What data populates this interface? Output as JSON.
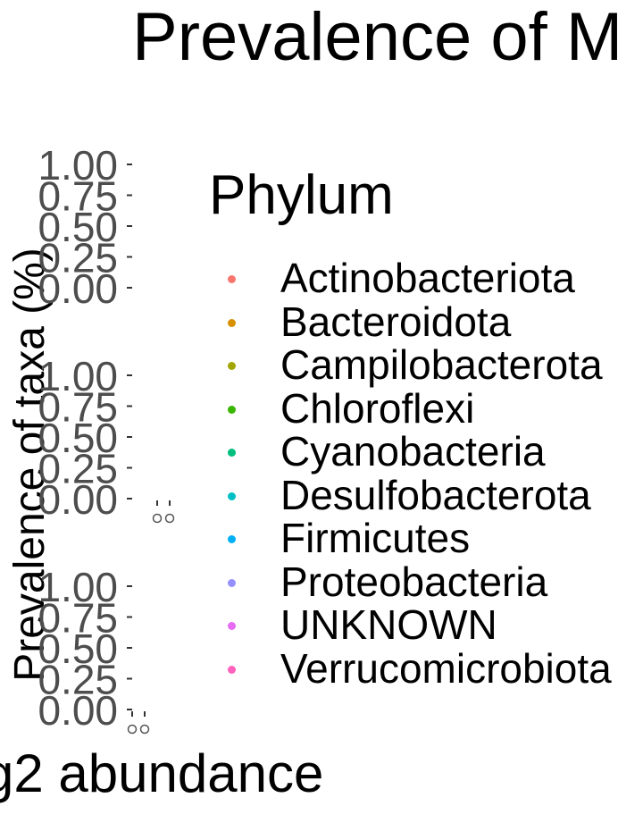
{
  "chart_data": {
    "type": "scatter",
    "title": "Prevalence of M",
    "ylabel": "Prevalence of taxa (%)",
    "xlabel": "g2 abundance",
    "legend_title": "Phylum",
    "legend_position": "right",
    "grid": false,
    "panels": [
      {
        "yticks": [
          "1.00",
          "0.75",
          "0.50",
          "0.25",
          "0.00"
        ],
        "ylim": [
          0,
          1
        ],
        "points": []
      },
      {
        "yticks": [
          "1.00",
          "0.75",
          "0.50",
          "0.25",
          "0.00"
        ],
        "ylim": [
          0,
          1
        ],
        "points": [
          0,
          0
        ]
      },
      {
        "yticks": [
          "1.00",
          "0.75",
          "0.50",
          "0.25",
          "0.00"
        ],
        "ylim": [
          0,
          1
        ],
        "points": [
          0,
          0
        ]
      }
    ],
    "series": [
      {
        "name": "Actinobacteriota",
        "color": "#F8766D"
      },
      {
        "name": "Bacteroidota",
        "color": "#D89000"
      },
      {
        "name": "Campilobacterota",
        "color": "#A3A500"
      },
      {
        "name": "Chloroflexi",
        "color": "#39B600"
      },
      {
        "name": "Cyanobacteria",
        "color": "#00BF7D"
      },
      {
        "name": "Desulfobacterota",
        "color": "#00BFC4"
      },
      {
        "name": "Firmicutes",
        "color": "#00B0F6"
      },
      {
        "name": "Proteobacteria",
        "color": "#9590FF"
      },
      {
        "name": "UNKNOWN",
        "color": "#E76BF3"
      },
      {
        "name": "Verrucomicrobiota",
        "color": "#FF62BC"
      }
    ]
  }
}
